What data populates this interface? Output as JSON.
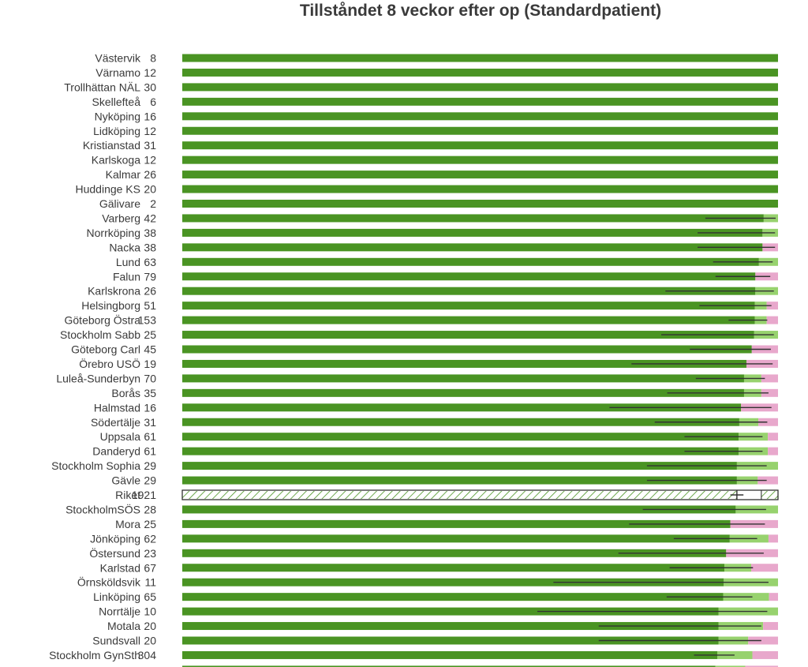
{
  "chart_data": {
    "type": "bar",
    "orientation": "horizontal",
    "stacked": true,
    "title": "Tillståndet 8 veckor efter op (Standardpatient)",
    "xlim": [
      0,
      1
    ],
    "grid": false,
    "legend": "none",
    "colors": {
      "dark_green": "#4a9423",
      "light_green": "#97d26e",
      "pink": "#e8a8cc",
      "error_bar": "#333333",
      "total_hatch": "#4a9423",
      "total_border": "#222222"
    },
    "rows": [
      {
        "name": "Västervik",
        "n": "8",
        "values": [
          1.0,
          0.0,
          0.0
        ],
        "ci": null
      },
      {
        "name": "Värnamo",
        "n": "12",
        "values": [
          1.0,
          0.0,
          0.0
        ],
        "ci": null
      },
      {
        "name": "Trollhättan NÄL",
        "n": "30",
        "values": [
          1.0,
          0.0,
          0.0
        ],
        "ci": null
      },
      {
        "name": "Skellefteå",
        "n": "6",
        "values": [
          1.0,
          0.0,
          0.0
        ],
        "ci": null
      },
      {
        "name": "Nyköping",
        "n": "16",
        "values": [
          1.0,
          0.0,
          0.0
        ],
        "ci": null
      },
      {
        "name": "Lidköping",
        "n": "12",
        "values": [
          1.0,
          0.0,
          0.0
        ],
        "ci": null
      },
      {
        "name": "Kristianstad",
        "n": "31",
        "values": [
          1.0,
          0.0,
          0.0
        ],
        "ci": null
      },
      {
        "name": "Karlskoga",
        "n": "12",
        "values": [
          1.0,
          0.0,
          0.0
        ],
        "ci": null
      },
      {
        "name": "Kalmar",
        "n": "26",
        "values": [
          1.0,
          0.0,
          0.0
        ],
        "ci": null
      },
      {
        "name": "Huddinge KS",
        "n": "20",
        "values": [
          1.0,
          0.0,
          0.0
        ],
        "ci": null
      },
      {
        "name": "Gälivare",
        "n": "2",
        "values": [
          1.0,
          0.0,
          0.0
        ],
        "ci": null
      },
      {
        "name": "Varberg",
        "n": "42",
        "values": [
          0.976,
          0.024,
          0.0
        ],
        "ci": [
          0.878,
          0.996
        ]
      },
      {
        "name": "Norrköping",
        "n": "38",
        "values": [
          0.974,
          0.026,
          0.0
        ],
        "ci": [
          0.865,
          0.995
        ]
      },
      {
        "name": "Nacka",
        "n": "38",
        "values": [
          0.974,
          0.0,
          0.026
        ],
        "ci": [
          0.865,
          0.995
        ]
      },
      {
        "name": "Lund",
        "n": "63",
        "values": [
          0.968,
          0.032,
          0.0
        ],
        "ci": [
          0.891,
          0.991
        ]
      },
      {
        "name": "Falun",
        "n": "79",
        "values": [
          0.962,
          0.0,
          0.038
        ],
        "ci": [
          0.895,
          0.987
        ]
      },
      {
        "name": "Karlskrona",
        "n": "26",
        "values": [
          0.962,
          0.038,
          0.0
        ],
        "ci": [
          0.811,
          0.993
        ]
      },
      {
        "name": "Helsingborg",
        "n": "51",
        "values": [
          0.961,
          0.02,
          0.019
        ],
        "ci": [
          0.868,
          0.989
        ]
      },
      {
        "name": "Göteborg Östra",
        "n": "153",
        "values": [
          0.961,
          0.02,
          0.019
        ],
        "ci": [
          0.917,
          0.982
        ]
      },
      {
        "name": "Stockholm Sabb",
        "n": "25",
        "values": [
          0.96,
          0.04,
          0.0
        ],
        "ci": [
          0.804,
          0.993
        ]
      },
      {
        "name": "Göteborg Carl",
        "n": "45",
        "values": [
          0.956,
          0.0,
          0.044
        ],
        "ci": [
          0.852,
          0.988
        ]
      },
      {
        "name": "Örebro USÖ",
        "n": "19",
        "values": [
          0.947,
          0.0,
          0.053
        ],
        "ci": [
          0.754,
          0.991
        ]
      },
      {
        "name": "Luleå-Sunderbyn",
        "n": "70",
        "values": [
          0.943,
          0.029,
          0.028
        ],
        "ci": [
          0.862,
          0.978
        ]
      },
      {
        "name": "Borås",
        "n": "35",
        "values": [
          0.943,
          0.029,
          0.028
        ],
        "ci": [
          0.814,
          0.984
        ]
      },
      {
        "name": "Halmstad",
        "n": "16",
        "values": [
          0.938,
          0.0,
          0.062
        ],
        "ci": [
          0.717,
          0.989
        ]
      },
      {
        "name": "Södertälje",
        "n": "31",
        "values": [
          0.935,
          0.032,
          0.033
        ],
        "ci": [
          0.793,
          0.982
        ]
      },
      {
        "name": "Uppsala",
        "n": "61",
        "values": [
          0.934,
          0.049,
          0.017
        ],
        "ci": [
          0.843,
          0.974
        ]
      },
      {
        "name": "Danderyd",
        "n": "61",
        "values": [
          0.934,
          0.049,
          0.017
        ],
        "ci": [
          0.843,
          0.974
        ]
      },
      {
        "name": "Stockholm Sophia",
        "n": "29",
        "values": [
          0.931,
          0.069,
          0.0
        ],
        "ci": [
          0.78,
          0.981
        ]
      },
      {
        "name": "Gävle",
        "n": "29",
        "values": [
          0.931,
          0.035,
          0.034
        ],
        "ci": [
          0.78,
          0.981
        ]
      },
      {
        "name": "Riket",
        "n": "1921",
        "total": true,
        "values": [
          0.931,
          0.041,
          0.028
        ],
        "ci": [
          0.92,
          0.942
        ]
      },
      {
        "name": "StockholmSÖS",
        "n": "28",
        "values": [
          0.929,
          0.071,
          0.0
        ],
        "ci": [
          0.773,
          0.98
        ]
      },
      {
        "name": "Mora",
        "n": "25",
        "values": [
          0.92,
          0.0,
          0.08
        ],
        "ci": [
          0.75,
          0.978
        ]
      },
      {
        "name": "Jönköping",
        "n": "62",
        "values": [
          0.919,
          0.065,
          0.016
        ],
        "ci": [
          0.825,
          0.965
        ]
      },
      {
        "name": "Östersund",
        "n": "23",
        "values": [
          0.913,
          0.0,
          0.087
        ],
        "ci": [
          0.732,
          0.976
        ]
      },
      {
        "name": "Karlstad",
        "n": "67",
        "values": [
          0.91,
          0.045,
          0.045
        ],
        "ci": [
          0.818,
          0.958
        ]
      },
      {
        "name": "Örnsköldsvik",
        "n": "11",
        "values": [
          0.909,
          0.091,
          0.0
        ],
        "ci": [
          0.623,
          0.984
        ]
      },
      {
        "name": "Linköping",
        "n": "65",
        "values": [
          0.908,
          0.077,
          0.015
        ],
        "ci": [
          0.813,
          0.957
        ]
      },
      {
        "name": "Norrtälje",
        "n": "10",
        "values": [
          0.9,
          0.1,
          0.0
        ],
        "ci": [
          0.596,
          0.982
        ]
      },
      {
        "name": "Motala",
        "n": "20",
        "values": [
          0.9,
          0.075,
          0.025
        ],
        "ci": [
          0.699,
          0.972
        ]
      },
      {
        "name": "Sundsvall",
        "n": "20",
        "values": [
          0.9,
          0.05,
          0.05
        ],
        "ci": [
          0.699,
          0.972
        ]
      },
      {
        "name": "Stockholm GynSth",
        "n": "304",
        "values": [
          0.898,
          0.059,
          0.043
        ],
        "ci": [
          0.859,
          0.927
        ]
      },
      {
        "name": "",
        "n": "",
        "values": [
          0.895,
          0.05,
          0.055
        ],
        "ci": null
      }
    ]
  }
}
